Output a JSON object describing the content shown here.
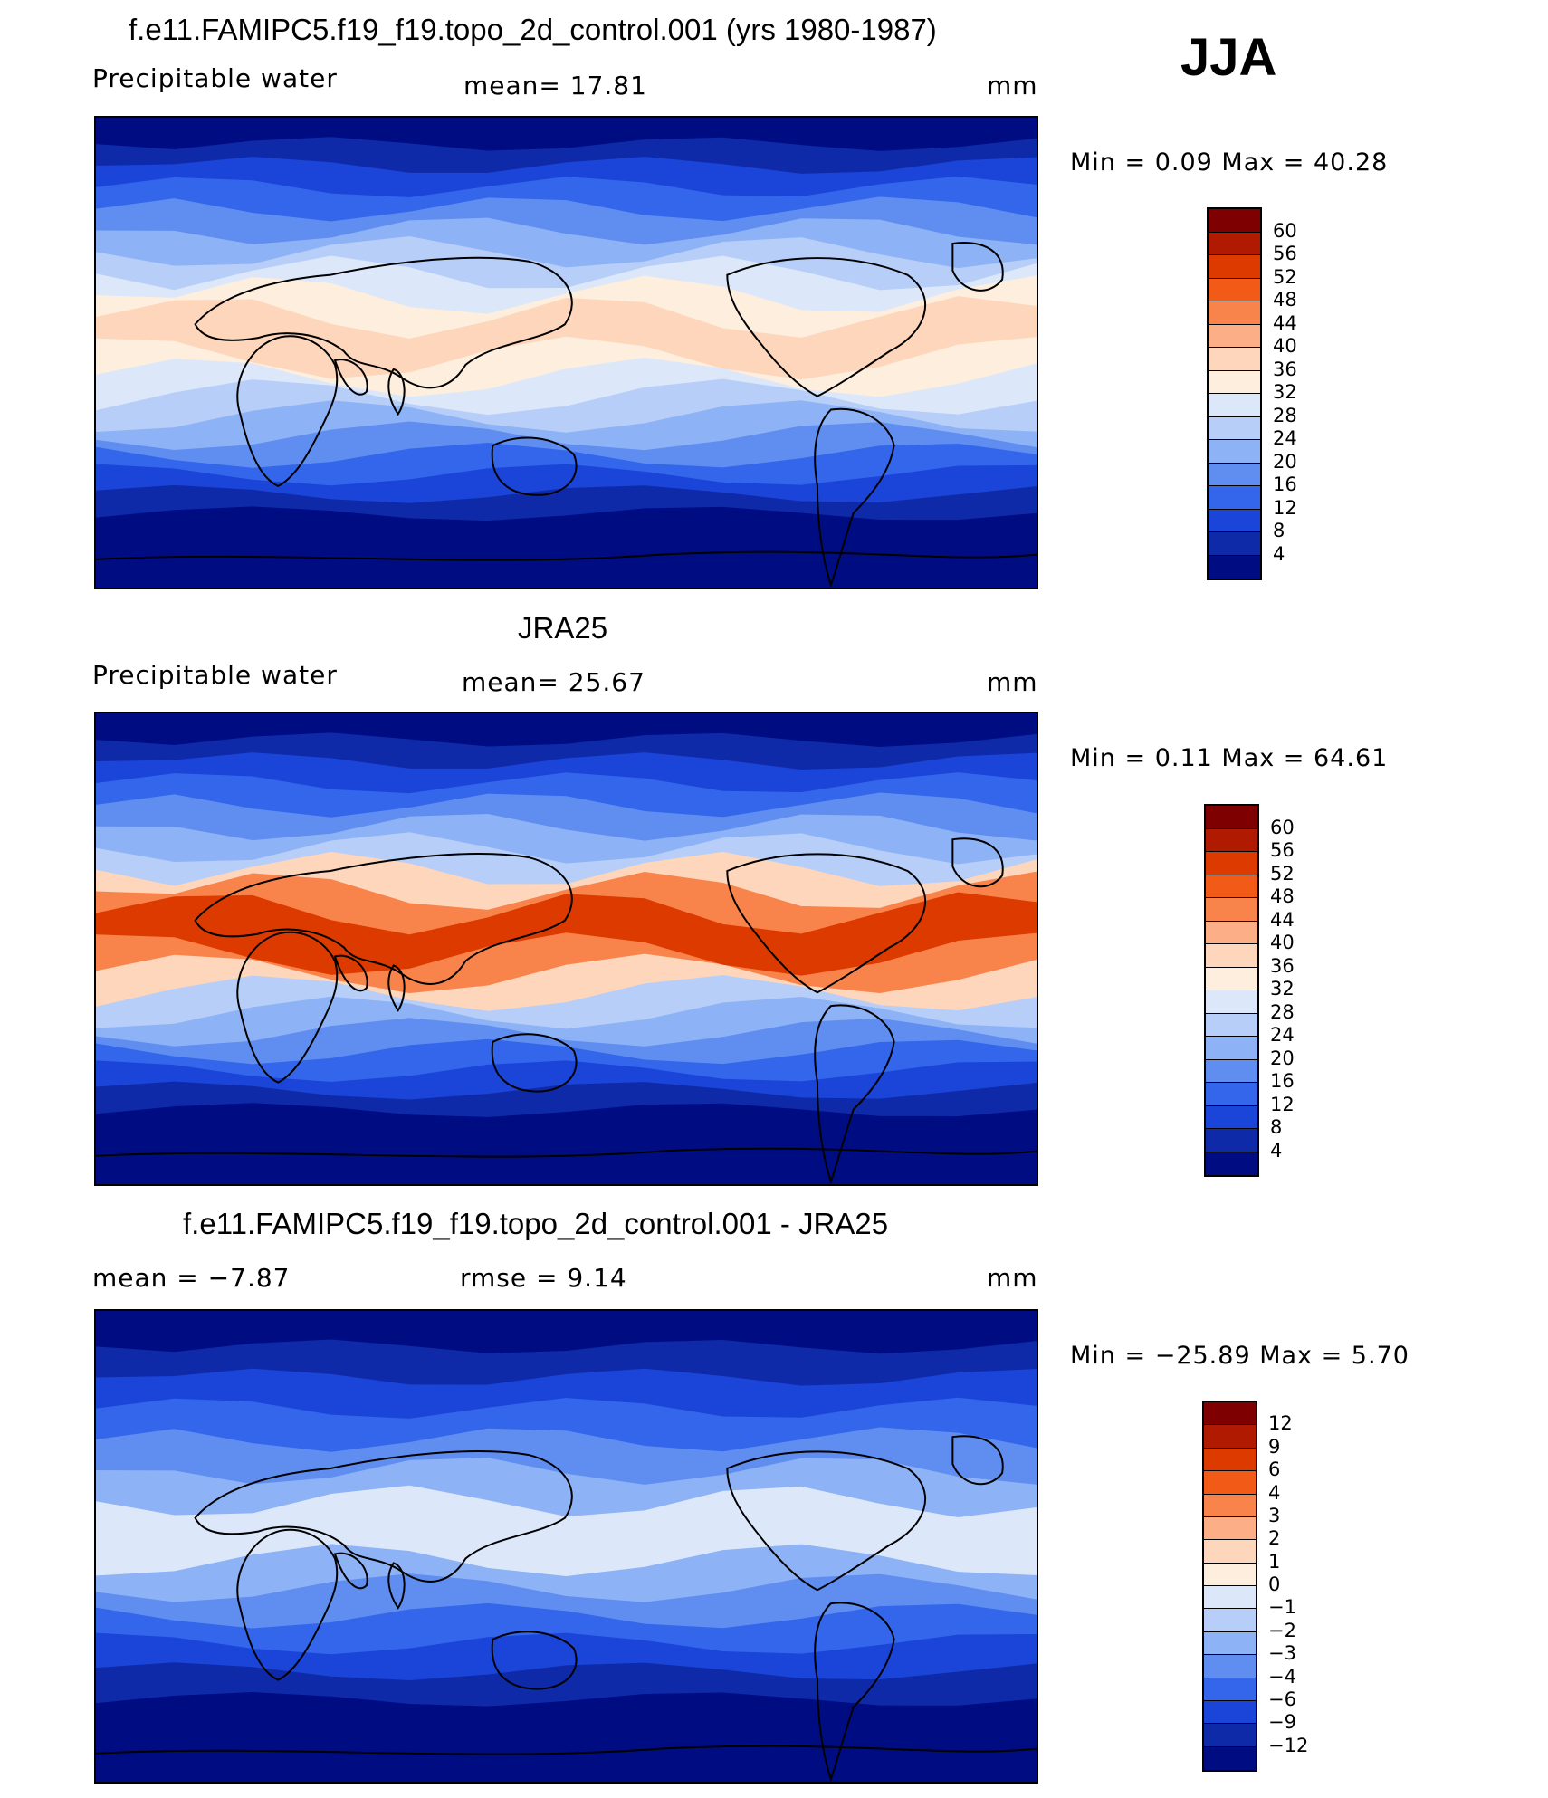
{
  "season": "JJA",
  "panels": [
    {
      "title": "f.e11.FAMIPC5.f19_f19.topo_2d_control.001 (yrs 1980-1987)",
      "variable": "Precipitable water",
      "stat1": "mean=   17.81",
      "stat2": "",
      "units": "mm",
      "minmax": "Min =    0.09  Max =   40.28",
      "colorbar": {
        "levels": [
          "60",
          "56",
          "52",
          "48",
          "44",
          "40",
          "36",
          "32",
          "28",
          "24",
          "20",
          "16",
          "12",
          "8",
          "4"
        ],
        "colors": [
          "#7f0000",
          "#b01a00",
          "#dd3a00",
          "#f25a18",
          "#f8844c",
          "#fcae86",
          "#fdd6bc",
          "#fdeede",
          "#dce8fa",
          "#b6cef8",
          "#8eb2f6",
          "#5f8ef0",
          "#3366ea",
          "#1b44d8",
          "#0e2aa8",
          "#000d82"
        ]
      },
      "field_colors": [
        "#000d82",
        "#0e2aa8",
        "#1b44d8",
        "#3366ea",
        "#5f8ef0",
        "#8eb2f6",
        "#b6cef8",
        "#dce8fa",
        "#fdeede",
        "#fdd6bc"
      ]
    },
    {
      "title": "JRA25",
      "variable": "Precipitable water",
      "stat1": "mean=   25.67",
      "stat2": "",
      "units": "mm",
      "minmax": "Min =    0.11  Max =   64.61",
      "colorbar": {
        "levels": [
          "60",
          "56",
          "52",
          "48",
          "44",
          "40",
          "36",
          "32",
          "28",
          "24",
          "20",
          "16",
          "12",
          "8",
          "4"
        ],
        "colors": [
          "#7f0000",
          "#b01a00",
          "#dd3a00",
          "#f25a18",
          "#f8844c",
          "#fcae86",
          "#fdd6bc",
          "#fdeede",
          "#dce8fa",
          "#b6cef8",
          "#8eb2f6",
          "#5f8ef0",
          "#3366ea",
          "#1b44d8",
          "#0e2aa8",
          "#000d82"
        ]
      },
      "field_colors": [
        "#000d82",
        "#0e2aa8",
        "#1b44d8",
        "#3366ea",
        "#5f8ef0",
        "#8eb2f6",
        "#b6cef8",
        "#fdd6bc",
        "#f8844c",
        "#dd3a00"
      ]
    },
    {
      "title": "f.e11.FAMIPC5.f19_f19.topo_2d_control.001 - JRA25",
      "variable": "mean =   −7.87",
      "stat1": "rmse =     9.14",
      "stat2": "",
      "units": "mm",
      "minmax": "Min = −25.89  Max =     5.70",
      "colorbar": {
        "levels": [
          "12",
          "9",
          "6",
          "4",
          "3",
          "2",
          "1",
          "0",
          "−1",
          "−2",
          "−3",
          "−4",
          "−6",
          "−9",
          "−12"
        ],
        "colors": [
          "#7f0000",
          "#b01a00",
          "#dd3a00",
          "#f25a18",
          "#f8844c",
          "#fcae86",
          "#fdd6bc",
          "#fdeede",
          "#dce8fa",
          "#b6cef8",
          "#8eb2f6",
          "#5f8ef0",
          "#3366ea",
          "#1b44d8",
          "#0e2aa8",
          "#000d82"
        ]
      },
      "field_colors": [
        "#000d82",
        "#0e2aa8",
        "#1b44d8",
        "#3366ea",
        "#5f8ef0",
        "#8eb2f6",
        "#dce8fa"
      ]
    }
  ]
}
